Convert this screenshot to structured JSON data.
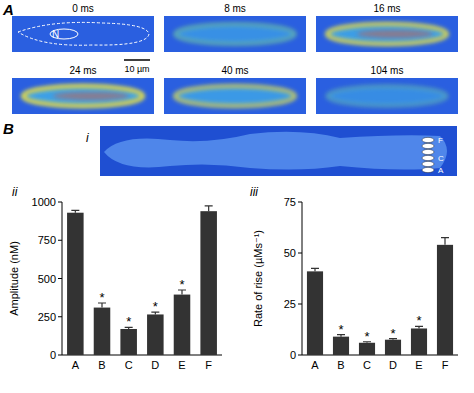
{
  "panel_a": {
    "label": "A",
    "frames": [
      "0 ms",
      "8 ms",
      "16 ms",
      "24 ms",
      "40 ms",
      "104 ms"
    ],
    "nucleus_label": "N",
    "scale_bar": "10 µm"
  },
  "panel_b": {
    "label": "B",
    "schematic": {
      "label": "i",
      "region_labels": [
        "F",
        "C",
        "A"
      ]
    }
  },
  "chart_data": [
    {
      "type": "bar",
      "label": "ii",
      "ylabel": "Amplitude (nM)",
      "categories": [
        "A",
        "B",
        "C",
        "D",
        "E",
        "F"
      ],
      "values": [
        930,
        310,
        170,
        265,
        395,
        940
      ],
      "errors": [
        15,
        30,
        10,
        15,
        30,
        35
      ],
      "color": "#333333",
      "ylim": [
        0,
        1000
      ],
      "yticks": [
        0,
        250,
        500,
        750,
        1000
      ],
      "annotations": [
        {
          "category": "B",
          "text": "*"
        },
        {
          "category": "C",
          "text": "*"
        },
        {
          "category": "D",
          "text": "*"
        },
        {
          "category": "E",
          "text": "*"
        }
      ]
    },
    {
      "type": "bar",
      "label": "iii",
      "ylabel": "Rate of rise (µMs⁻¹)",
      "categories": [
        "A",
        "B",
        "C",
        "D",
        "E",
        "F"
      ],
      "values": [
        41,
        9,
        6,
        7.5,
        13,
        54
      ],
      "errors": [
        1.5,
        1,
        0.5,
        0.5,
        1,
        3.5
      ],
      "color": "#333333",
      "ylim": [
        0,
        75
      ],
      "yticks": [
        0,
        25,
        50,
        75
      ],
      "annotations": [
        {
          "category": "B",
          "text": "*"
        },
        {
          "category": "C",
          "text": "*"
        },
        {
          "category": "D",
          "text": "*"
        },
        {
          "category": "E",
          "text": "*"
        }
      ]
    }
  ]
}
